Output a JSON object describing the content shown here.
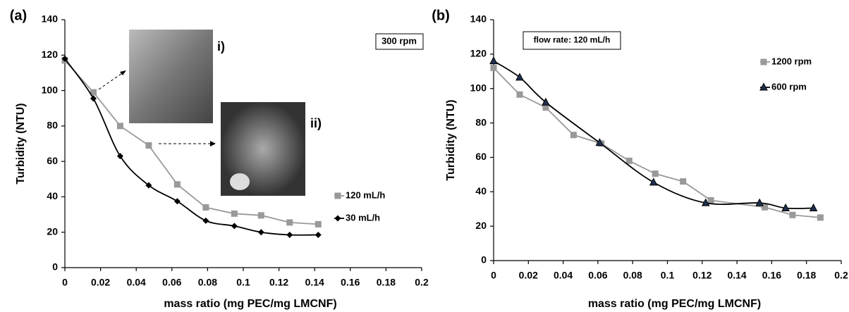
{
  "chart_data": [
    {
      "type": "line",
      "panel_label": "(a)",
      "xlabel": "mass ratio (mg PEC/mg LMCNF)",
      "ylabel": "Turbidity (NTU)",
      "xlim": [
        0,
        0.2
      ],
      "xticks": [
        0,
        0.02,
        0.04,
        0.06,
        0.08,
        0.1,
        0.12,
        0.14,
        0.16,
        0.18,
        0.2
      ],
      "ylim": [
        0,
        140
      ],
      "yticks": [
        0,
        20,
        40,
        60,
        80,
        100,
        120,
        140
      ],
      "annotations": [
        "300 rpm",
        "i)",
        "ii)"
      ],
      "series": [
        {
          "name": "120 mL/h",
          "color": "#999999",
          "marker": "square",
          "marker_color": "#999999",
          "smooth": false,
          "x": [
            0,
            0.016,
            0.031,
            0.047,
            0.063,
            0.079,
            0.095,
            0.11,
            0.126,
            0.142
          ],
          "values": [
            117,
            99,
            80,
            69,
            47,
            34,
            30.5,
            29.5,
            25.5,
            24.5
          ]
        },
        {
          "name": "30 mL/h",
          "color": "#000000",
          "marker": "diamond",
          "marker_color": "#000000",
          "smooth": true,
          "x": [
            0,
            0.016,
            0.031,
            0.047,
            0.063,
            0.079,
            0.095,
            0.11,
            0.126,
            0.142
          ],
          "values": [
            118,
            95.5,
            63,
            46.5,
            37.5,
            26.5,
            23.5,
            20,
            18.5,
            18.5
          ]
        }
      ]
    },
    {
      "type": "line",
      "panel_label": "(b)",
      "xlabel": "mass ratio (mg PEC/mg LMCNF)",
      "ylabel": "Turbidity (NTU)",
      "xlim": [
        0,
        0.2
      ],
      "xticks": [
        0,
        0.02,
        0.04,
        0.06,
        0.08,
        0.1,
        0.12,
        0.14,
        0.16,
        0.18,
        0.2
      ],
      "ylim": [
        0,
        140
      ],
      "yticks": [
        0,
        20,
        40,
        60,
        80,
        100,
        120,
        140
      ],
      "annotations": [
        "flow rate: 120 mL/h"
      ],
      "series": [
        {
          "name": "1200 rpm",
          "color": "#999999",
          "marker": "square",
          "marker_color": "#999999",
          "smooth": false,
          "x": [
            0,
            0.015,
            0.03,
            0.046,
            0.062,
            0.078,
            0.093,
            0.109,
            0.125,
            0.156,
            0.172,
            0.188
          ],
          "values": [
            112,
            96.5,
            89,
            73,
            68,
            58,
            50.5,
            46,
            35,
            31,
            26.5,
            25
          ]
        },
        {
          "name": "600 rpm",
          "color": "#000000",
          "marker": "triangle",
          "marker_color": "#1f3050",
          "smooth": true,
          "x": [
            0,
            0.015,
            0.03,
            0.061,
            0.092,
            0.122,
            0.153,
            0.168,
            0.184
          ],
          "values": [
            116,
            106.5,
            92,
            68.5,
            45.5,
            33.5,
            33.5,
            30.5,
            30.5
          ]
        }
      ]
    }
  ]
}
